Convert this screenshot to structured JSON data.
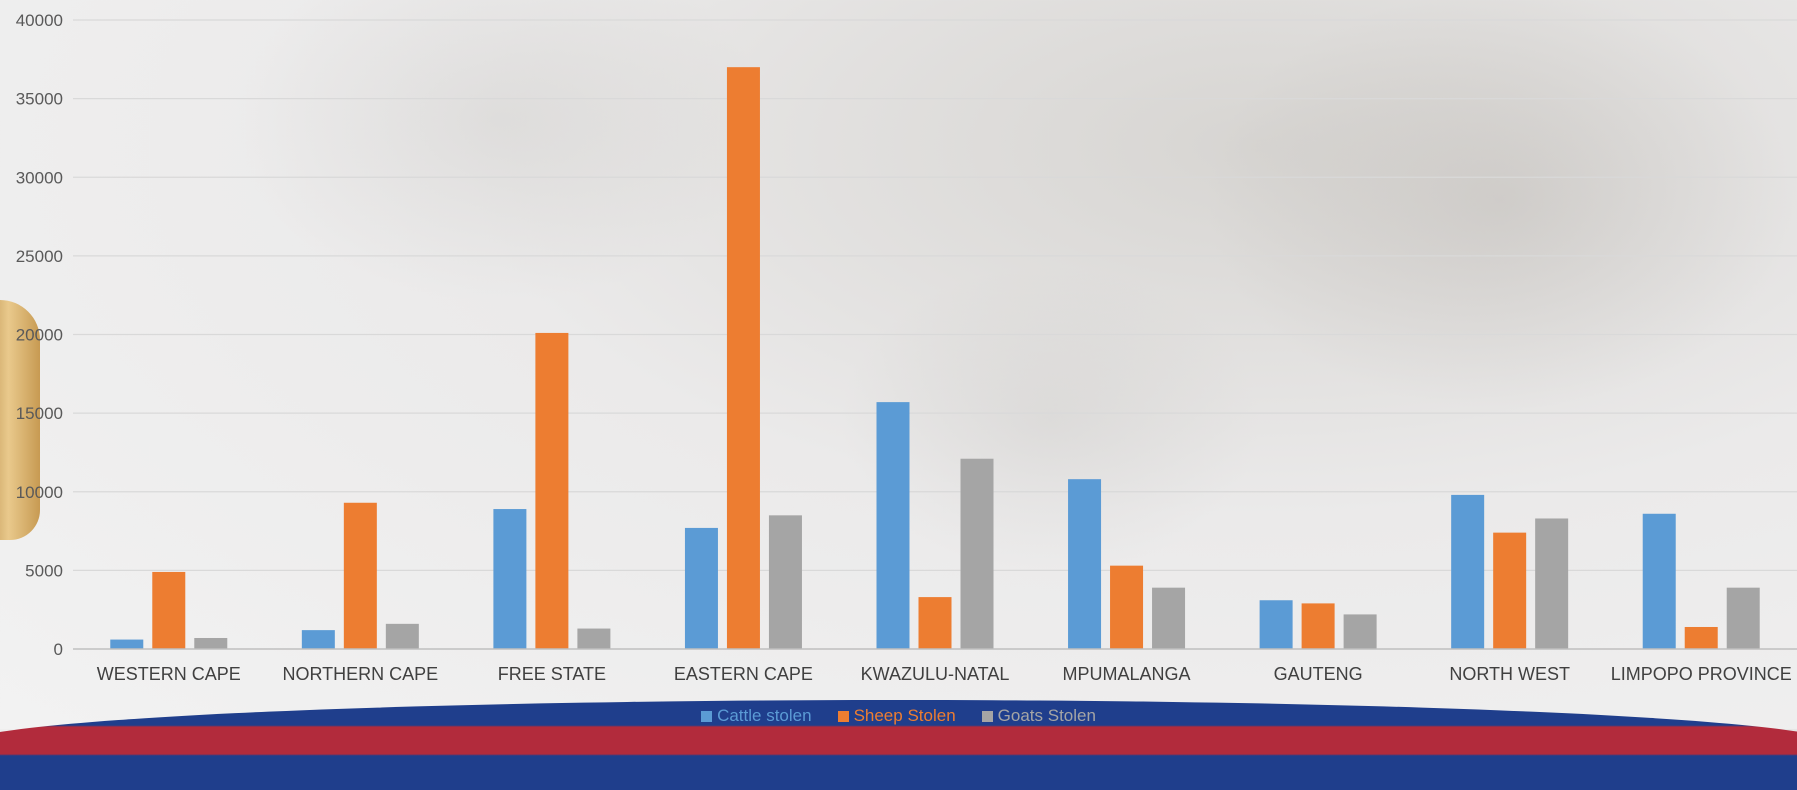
{
  "chart_data": {
    "type": "bar",
    "categories": [
      "WESTERN CAPE",
      "NORTHERN CAPE",
      "FREE STATE",
      "EASTERN CAPE",
      "KWAZULU-NATAL",
      "MPUMALANGA",
      "GAUTENG",
      "NORTH WEST",
      "LIMPOPO PROVINCE"
    ],
    "series": [
      {
        "name": "Cattle stolen",
        "color": "#5b9bd5",
        "values": [
          600,
          1200,
          8900,
          7700,
          15700,
          10800,
          3100,
          9800,
          8600
        ]
      },
      {
        "name": "Sheep Stolen",
        "color": "#ed7d31",
        "values": [
          4900,
          9300,
          20100,
          37000,
          3300,
          5300,
          2900,
          7400,
          1400
        ]
      },
      {
        "name": "Goats Stolen",
        "color": "#a5a5a5",
        "values": [
          700,
          1600,
          1300,
          8500,
          12100,
          3900,
          2200,
          8300,
          3900
        ]
      }
    ],
    "ylim": [
      0,
      40000
    ],
    "yticks": [
      "0",
      "5000",
      "10000",
      "15000",
      "20000",
      "25000",
      "30000",
      "35000",
      "40000"
    ],
    "grid": true,
    "legend_position": "bottom",
    "title": "",
    "xlabel": "",
    "ylabel": ""
  }
}
